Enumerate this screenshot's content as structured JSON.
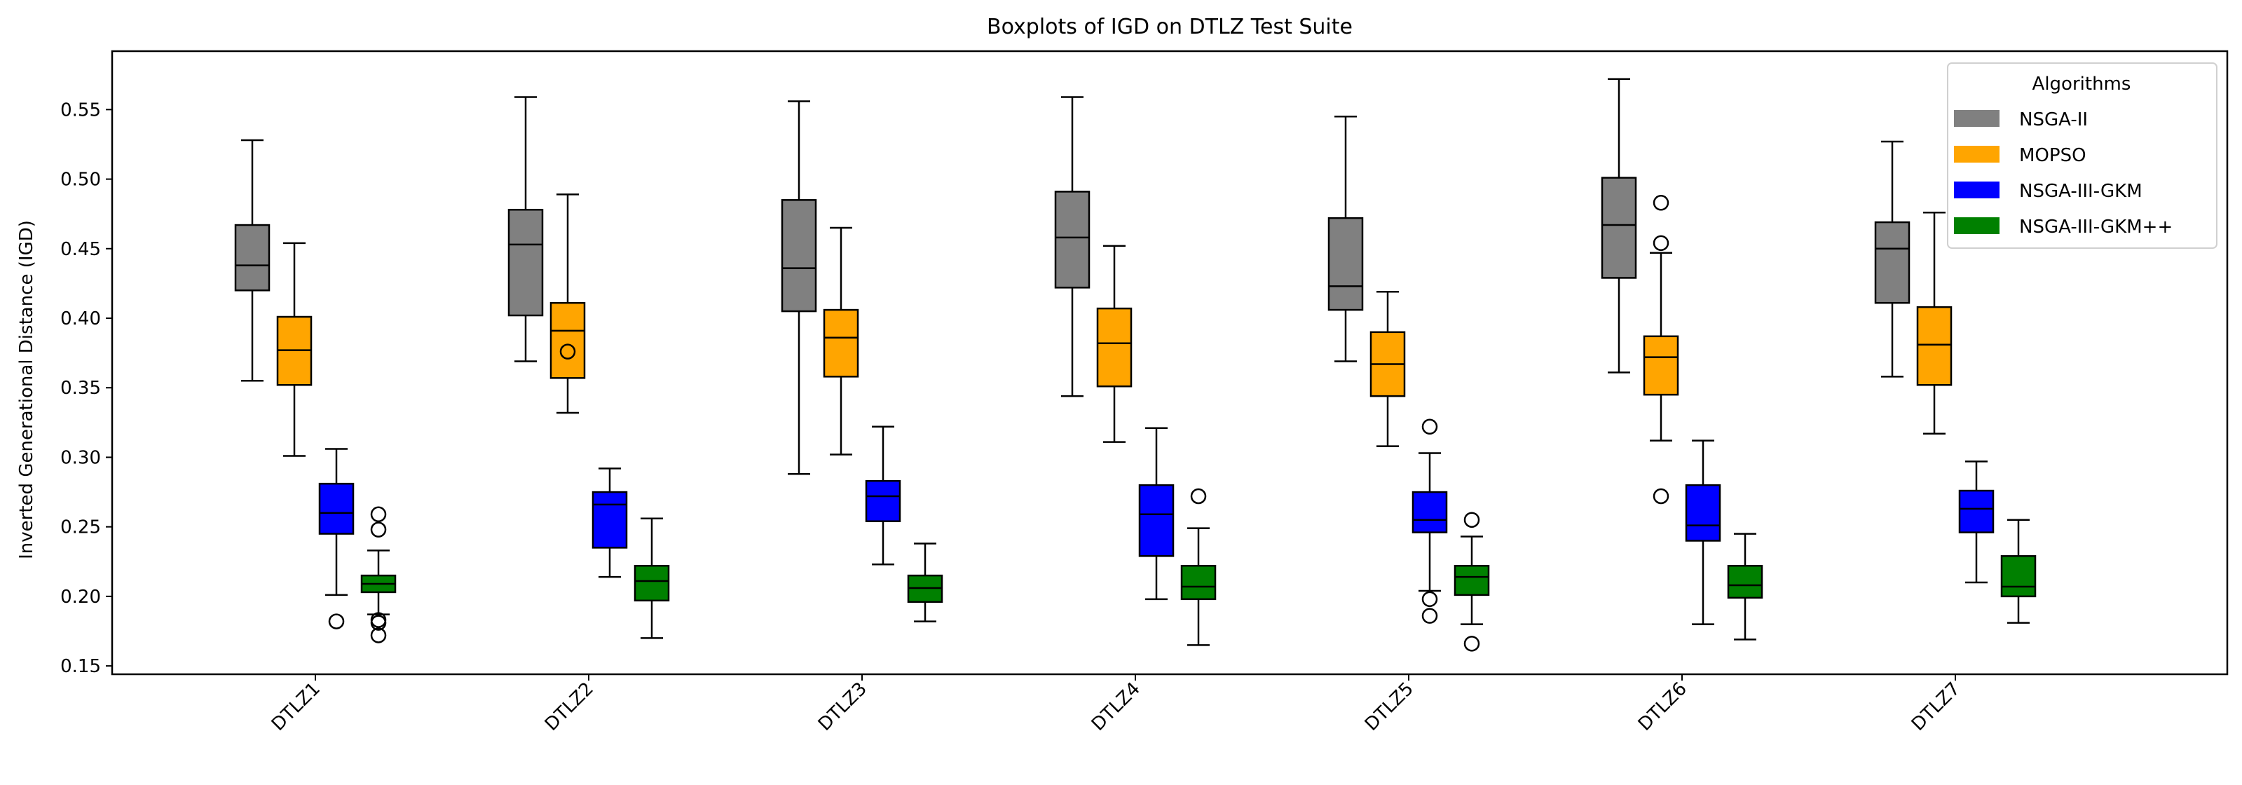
{
  "chart_data": {
    "type": "boxplot",
    "title": "Boxplots of IGD on DTLZ Test Suite",
    "xlabel": "",
    "ylabel": "Inverted Generational Distance (IGD)",
    "ylim": [
      0.144,
      0.592
    ],
    "yticks": [
      "0.15",
      "0.20",
      "0.25",
      "0.30",
      "0.35",
      "0.40",
      "0.45",
      "0.50",
      "0.55"
    ],
    "grid": false,
    "categories": [
      "DTLZ1",
      "DTLZ2",
      "DTLZ3",
      "DTLZ4",
      "DTLZ5",
      "DTLZ6",
      "DTLZ7"
    ],
    "legend": {
      "title": "Algorithms",
      "placement": "top-right"
    },
    "series": [
      {
        "name": "NSGA-II",
        "color": "#808080",
        "boxes": [
          {
            "whislo": 0.355,
            "q1": 0.42,
            "med": 0.438,
            "q3": 0.467,
            "whishi": 0.528,
            "fliers": []
          },
          {
            "whislo": 0.369,
            "q1": 0.402,
            "med": 0.453,
            "q3": 0.478,
            "whishi": 0.559,
            "fliers": []
          },
          {
            "whislo": 0.288,
            "q1": 0.405,
            "med": 0.436,
            "q3": 0.485,
            "whishi": 0.556,
            "fliers": []
          },
          {
            "whislo": 0.344,
            "q1": 0.422,
            "med": 0.458,
            "q3": 0.491,
            "whishi": 0.559,
            "fliers": []
          },
          {
            "whislo": 0.369,
            "q1": 0.406,
            "med": 0.423,
            "q3": 0.472,
            "whishi": 0.545,
            "fliers": []
          },
          {
            "whislo": 0.361,
            "q1": 0.429,
            "med": 0.467,
            "q3": 0.501,
            "whishi": 0.572,
            "fliers": []
          },
          {
            "whislo": 0.358,
            "q1": 0.411,
            "med": 0.45,
            "q3": 0.469,
            "whishi": 0.527,
            "fliers": []
          }
        ]
      },
      {
        "name": "MOPSO",
        "color": "#FFA500",
        "boxes": [
          {
            "whislo": 0.301,
            "q1": 0.352,
            "med": 0.377,
            "q3": 0.401,
            "whishi": 0.454,
            "fliers": []
          },
          {
            "whislo": 0.332,
            "q1": 0.357,
            "med": 0.391,
            "q3": 0.411,
            "whishi": 0.489,
            "fliers": [
              0.376
            ]
          },
          {
            "whislo": 0.302,
            "q1": 0.358,
            "med": 0.386,
            "q3": 0.406,
            "whishi": 0.465,
            "fliers": []
          },
          {
            "whislo": 0.311,
            "q1": 0.351,
            "med": 0.382,
            "q3": 0.407,
            "whishi": 0.452,
            "fliers": []
          },
          {
            "whislo": 0.308,
            "q1": 0.344,
            "med": 0.367,
            "q3": 0.39,
            "whishi": 0.419,
            "fliers": []
          },
          {
            "whislo": 0.312,
            "q1": 0.345,
            "med": 0.372,
            "q3": 0.387,
            "whishi": 0.447,
            "fliers": [
              0.483,
              0.454,
              0.272
            ]
          },
          {
            "whislo": 0.317,
            "q1": 0.352,
            "med": 0.381,
            "q3": 0.408,
            "whishi": 0.476,
            "fliers": []
          }
        ]
      },
      {
        "name": "NSGA-III-GKM",
        "color": "#0000FF",
        "boxes": [
          {
            "whislo": 0.201,
            "q1": 0.245,
            "med": 0.26,
            "q3": 0.281,
            "whishi": 0.306,
            "fliers": [
              0.182
            ]
          },
          {
            "whislo": 0.214,
            "q1": 0.235,
            "med": 0.266,
            "q3": 0.275,
            "whishi": 0.292,
            "fliers": []
          },
          {
            "whislo": 0.223,
            "q1": 0.254,
            "med": 0.272,
            "q3": 0.283,
            "whishi": 0.322,
            "fliers": []
          },
          {
            "whislo": 0.198,
            "q1": 0.229,
            "med": 0.259,
            "q3": 0.28,
            "whishi": 0.321,
            "fliers": []
          },
          {
            "whislo": 0.204,
            "q1": 0.246,
            "med": 0.255,
            "q3": 0.275,
            "whishi": 0.303,
            "fliers": [
              0.322,
              0.198,
              0.186
            ]
          },
          {
            "whislo": 0.18,
            "q1": 0.24,
            "med": 0.251,
            "q3": 0.28,
            "whishi": 0.312,
            "fliers": []
          },
          {
            "whislo": 0.21,
            "q1": 0.246,
            "med": 0.263,
            "q3": 0.276,
            "whishi": 0.297,
            "fliers": []
          }
        ]
      },
      {
        "name": "NSGA-III-GKM++",
        "color": "#008000",
        "boxes": [
          {
            "whislo": 0.187,
            "q1": 0.203,
            "med": 0.209,
            "q3": 0.215,
            "whishi": 0.233,
            "fliers": [
              0.259,
              0.248,
              0.183,
              0.181,
              0.172
            ]
          },
          {
            "whislo": 0.17,
            "q1": 0.197,
            "med": 0.211,
            "q3": 0.222,
            "whishi": 0.256,
            "fliers": []
          },
          {
            "whislo": 0.182,
            "q1": 0.196,
            "med": 0.206,
            "q3": 0.215,
            "whishi": 0.238,
            "fliers": []
          },
          {
            "whislo": 0.165,
            "q1": 0.198,
            "med": 0.207,
            "q3": 0.222,
            "whishi": 0.249,
            "fliers": [
              0.272
            ]
          },
          {
            "whislo": 0.18,
            "q1": 0.201,
            "med": 0.214,
            "q3": 0.222,
            "whishi": 0.243,
            "fliers": [
              0.255,
              0.166
            ]
          },
          {
            "whislo": 0.169,
            "q1": 0.199,
            "med": 0.208,
            "q3": 0.222,
            "whishi": 0.245,
            "fliers": []
          },
          {
            "whislo": 0.181,
            "q1": 0.2,
            "med": 0.207,
            "q3": 0.229,
            "whishi": 0.255,
            "fliers": []
          }
        ]
      }
    ]
  }
}
